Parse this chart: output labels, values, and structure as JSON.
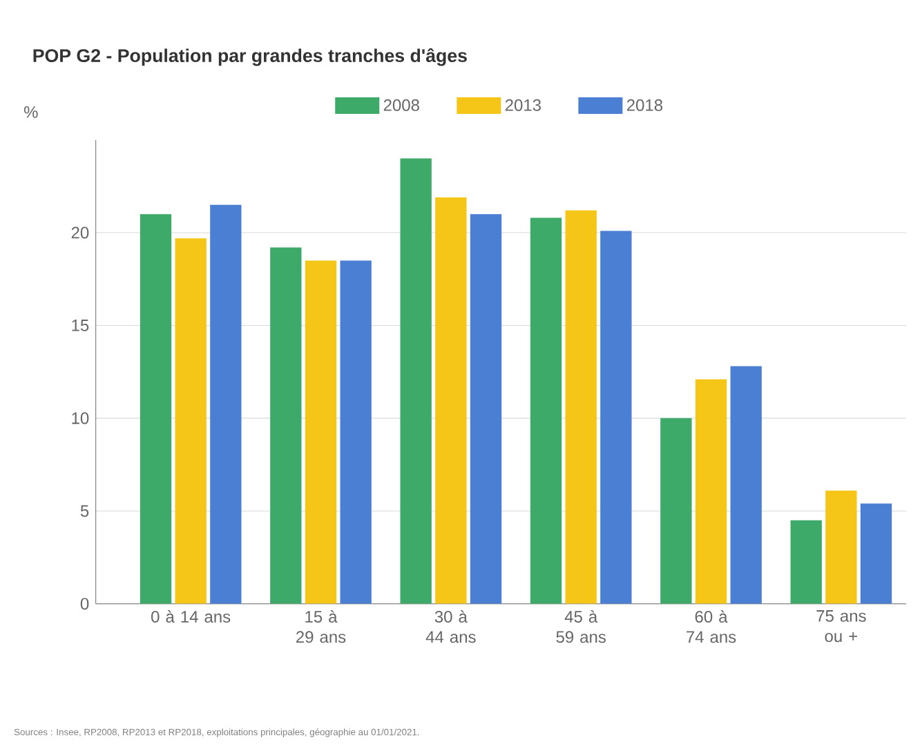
{
  "chart_data": {
    "type": "bar",
    "title": "POP G2 - Population par grandes tranches d'âges",
    "ylabel": "%",
    "categories": [
      "0 à 14 ans",
      "15 à 29 ans",
      "30 à 44 ans",
      "45 à 59 ans",
      "60 à 74 ans",
      "75 ans ou +"
    ],
    "series": [
      {
        "name": "2008",
        "color": "#3daa6a",
        "values": [
          21.0,
          19.2,
          24.0,
          20.8,
          10.0,
          4.5
        ]
      },
      {
        "name": "2013",
        "color": "#f5c518",
        "values": [
          19.7,
          18.5,
          21.9,
          21.2,
          12.1,
          6.1
        ]
      },
      {
        "name": "2018",
        "color": "#4a7fd4",
        "values": [
          21.5,
          18.5,
          21.0,
          20.1,
          12.8,
          5.4
        ]
      }
    ],
    "ylim": [
      0,
      25
    ],
    "yticks": [
      0,
      5,
      10,
      15,
      20
    ],
    "grid": "y",
    "legend": "top",
    "annotations": [
      "Sources : Insee, RP2008, RP2013 et RP2018, exploitations principales, géographie au 01/01/2021."
    ]
  }
}
